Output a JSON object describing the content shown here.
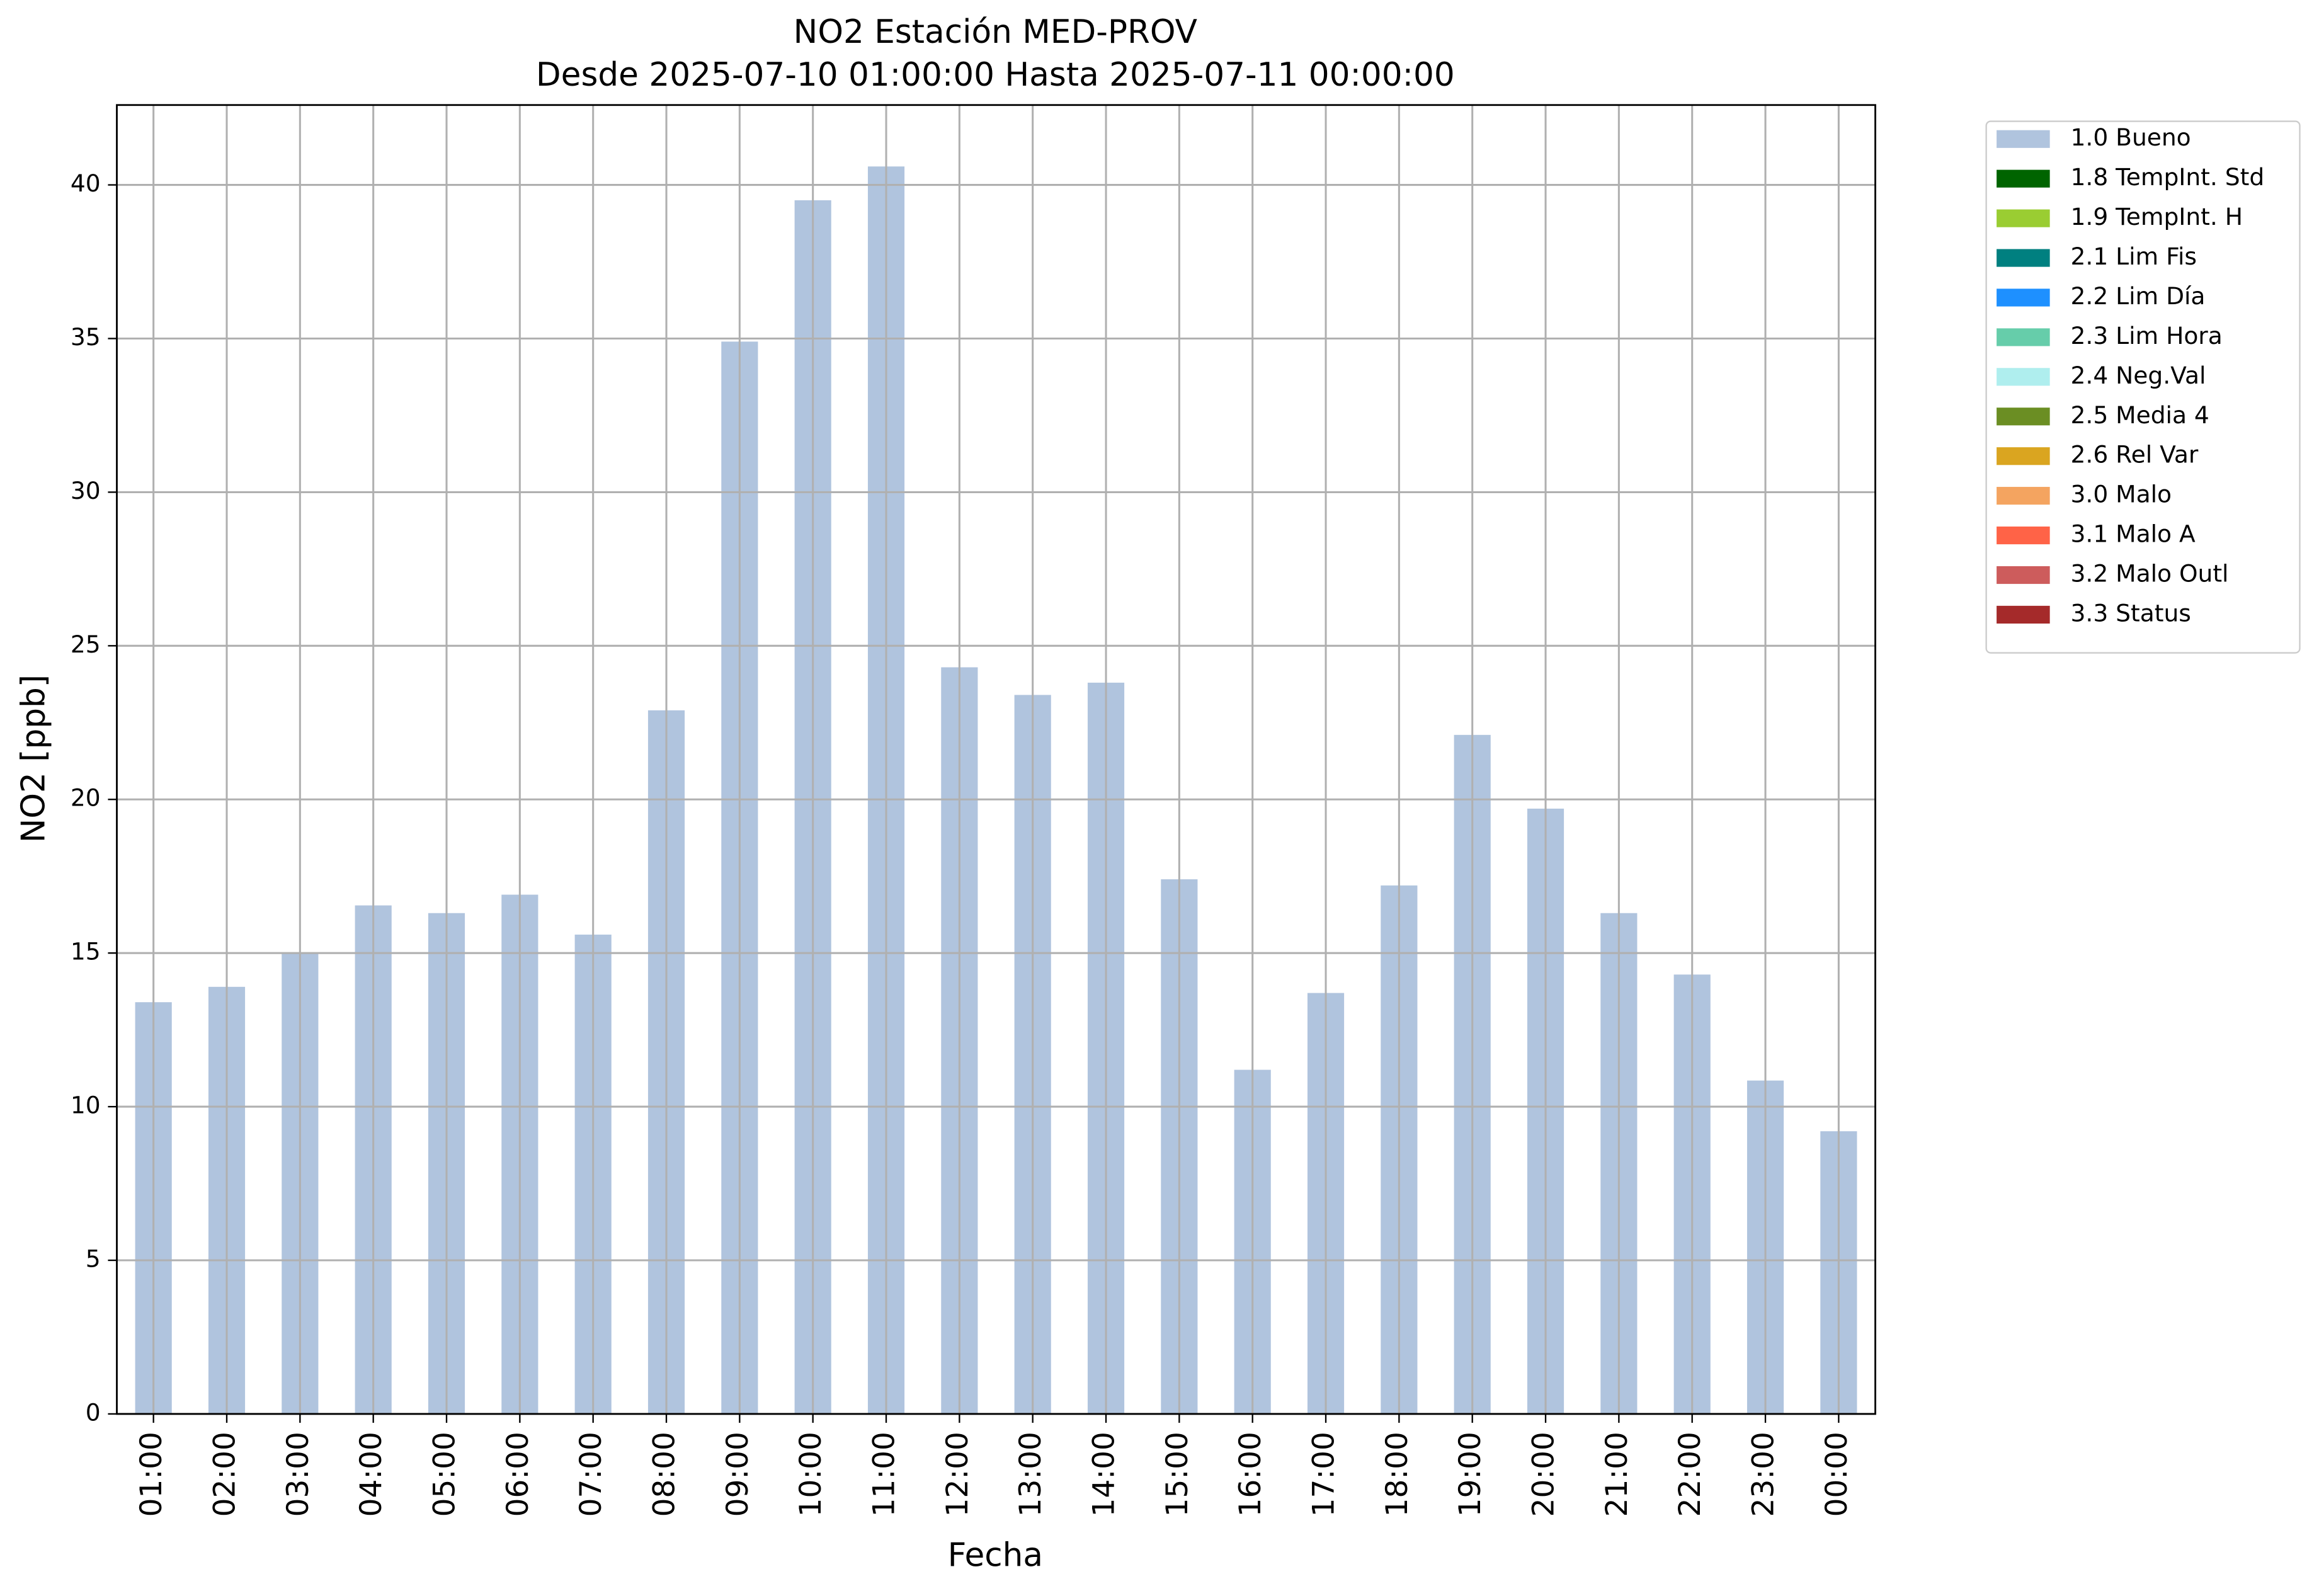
{
  "chart_data": {
    "type": "stacked_bar",
    "title": "NO2 Estación MED-PROV",
    "subtitle": "Desde 2025-07-10 01:00:00 Hasta 2025-07-11 00:00:00",
    "x_label": "Fecha",
    "y_label": "NO2 [ppb]",
    "categories": [
      "01:00",
      "02:00",
      "03:00",
      "04:00",
      "05:00",
      "06:00",
      "07:00",
      "08:00",
      "09:00",
      "10:00",
      "11:00",
      "12:00",
      "13:00",
      "14:00",
      "15:00",
      "16:00",
      "17:00",
      "18:00",
      "19:00",
      "20:00",
      "21:00",
      "22:00",
      "23:00",
      "00:00"
    ],
    "series": [
      {
        "name": "1.0 Bueno",
        "color": "#b0c4de",
        "values": [
          13.4,
          13.9,
          15.0,
          16.55,
          16.3,
          16.9,
          15.6,
          22.9,
          34.9,
          39.5,
          40.6,
          24.3,
          23.4,
          23.8,
          17.4,
          11.2,
          13.7,
          17.2,
          22.1,
          19.7,
          16.3,
          14.3,
          10.85,
          9.2
        ]
      },
      {
        "name": "1.8 TempInt. Std",
        "color": "#006400",
        "values": [
          0,
          0,
          0,
          0,
          0,
          0,
          0,
          0,
          0,
          0,
          0,
          0,
          0,
          0,
          0,
          0,
          0,
          0,
          0,
          0,
          0,
          0,
          0,
          0
        ]
      },
      {
        "name": "1.9 TempInt. H",
        "color": "#9acd32",
        "values": [
          0,
          0,
          0,
          0,
          0,
          0,
          0,
          0,
          0,
          0,
          0,
          0,
          0,
          0,
          0,
          0,
          0,
          0,
          0,
          0,
          0,
          0,
          0,
          0
        ]
      },
      {
        "name": "2.1 Lim Fis",
        "color": "#008080",
        "values": [
          0,
          0,
          0,
          0,
          0,
          0,
          0,
          0,
          0,
          0,
          0,
          0,
          0,
          0,
          0,
          0,
          0,
          0,
          0,
          0,
          0,
          0,
          0,
          0
        ]
      },
      {
        "name": "2.2 Lim Día",
        "color": "#1e90ff",
        "values": [
          0,
          0,
          0,
          0,
          0,
          0,
          0,
          0,
          0,
          0,
          0,
          0,
          0,
          0,
          0,
          0,
          0,
          0,
          0,
          0,
          0,
          0,
          0,
          0
        ]
      },
      {
        "name": "2.3 Lim Hora",
        "color": "#66cdaa",
        "values": [
          0,
          0,
          0,
          0,
          0,
          0,
          0,
          0,
          0,
          0,
          0,
          0,
          0,
          0,
          0,
          0,
          0,
          0,
          0,
          0,
          0,
          0,
          0,
          0
        ]
      },
      {
        "name": "2.4 Neg.Val",
        "color": "#afeeee",
        "values": [
          0,
          0,
          0,
          0,
          0,
          0,
          0,
          0,
          0,
          0,
          0,
          0,
          0,
          0,
          0,
          0,
          0,
          0,
          0,
          0,
          0,
          0,
          0,
          0
        ]
      },
      {
        "name": "2.5 Media 4",
        "color": "#6b8e23",
        "values": [
          0,
          0,
          0,
          0,
          0,
          0,
          0,
          0,
          0,
          0,
          0,
          0,
          0,
          0,
          0,
          0,
          0,
          0,
          0,
          0,
          0,
          0,
          0,
          0
        ]
      },
      {
        "name": "2.6 Rel Var",
        "color": "#daa520",
        "values": [
          0,
          0,
          0,
          0,
          0,
          0,
          0,
          0,
          0,
          0,
          0,
          0,
          0,
          0,
          0,
          0,
          0,
          0,
          0,
          0,
          0,
          0,
          0,
          0
        ]
      },
      {
        "name": "3.0 Malo",
        "color": "#f4a460",
        "values": [
          0,
          0,
          0,
          0,
          0,
          0,
          0,
          0,
          0,
          0,
          0,
          0,
          0,
          0,
          0,
          0,
          0,
          0,
          0,
          0,
          0,
          0,
          0,
          0
        ]
      },
      {
        "name": "3.1 Malo A",
        "color": "#ff6347",
        "values": [
          0,
          0,
          0,
          0,
          0,
          0,
          0,
          0,
          0,
          0,
          0,
          0,
          0,
          0,
          0,
          0,
          0,
          0,
          0,
          0,
          0,
          0,
          0,
          0
        ]
      },
      {
        "name": "3.2 Malo Outl",
        "color": "#cd5c5c",
        "values": [
          0,
          0,
          0,
          0,
          0,
          0,
          0,
          0,
          0,
          0,
          0,
          0,
          0,
          0,
          0,
          0,
          0,
          0,
          0,
          0,
          0,
          0,
          0,
          0
        ]
      },
      {
        "name": "3.3 Status",
        "color": "#a52a2a",
        "values": [
          0,
          0,
          0,
          0,
          0,
          0,
          0,
          0,
          0,
          0,
          0,
          0,
          0,
          0,
          0,
          0,
          0,
          0,
          0,
          0,
          0,
          0,
          0,
          0
        ]
      }
    ],
    "ylim": [
      0,
      42.6
    ],
    "yticks": [
      0,
      5,
      10,
      15,
      20,
      25,
      30,
      35,
      40
    ],
    "grid": true,
    "legend": "outside upper right"
  }
}
